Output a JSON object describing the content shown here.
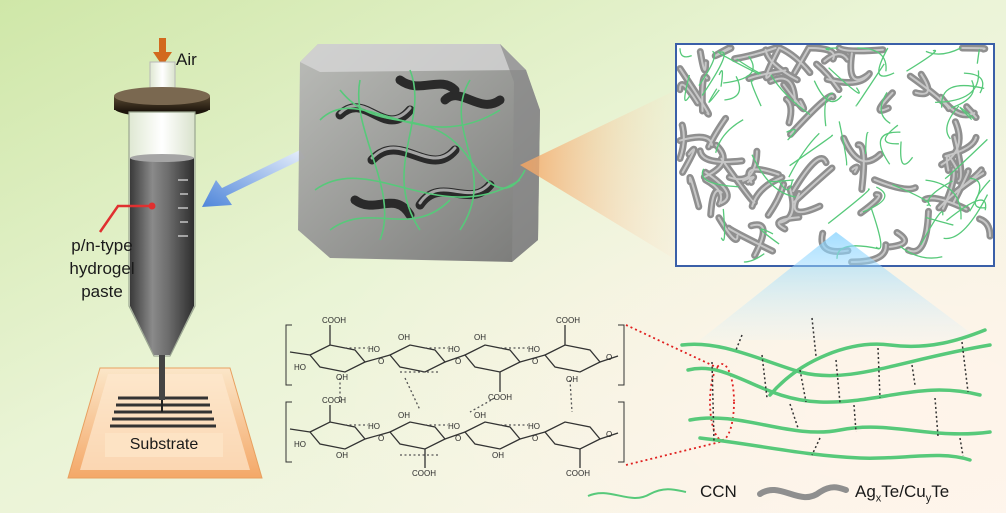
{
  "labels": {
    "air": "Air",
    "paste_line1": "p/n-type",
    "paste_line2": "hydrogel",
    "paste_line3": "paste",
    "substrate": "Substrate",
    "ccn": "CCN",
    "agte_ag": "Ag",
    "agte_x": "x",
    "agte_mid": "Te/Cu",
    "agte_y": "y",
    "agte_te": "Te"
  },
  "chem_labels": {
    "cooh": "COOH",
    "oh": "OH",
    "ho": "HO",
    "o": "O"
  },
  "colors": {
    "ccn_fiber": "#57c97a",
    "agte_fiber": "#9a9a9a",
    "arrow_air": "#d2691e",
    "pointer_red": "#e03030",
    "hbond_red": "#e02020",
    "flow_arrow": "#5c8ee0",
    "cone_orange": "#f4a460",
    "zoom_box_border": "#3a5fa8"
  }
}
